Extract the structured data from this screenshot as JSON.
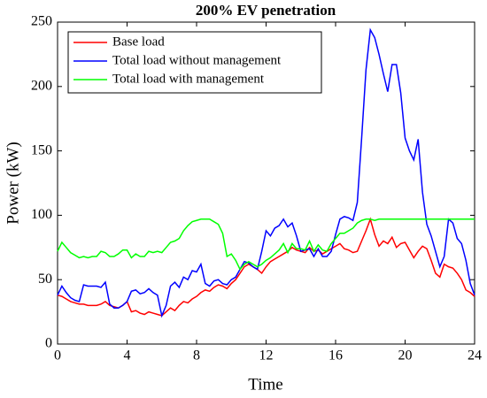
{
  "chart_data": {
    "type": "line",
    "title": "200% EV penetration",
    "x_label": "Time",
    "y_label": "Power (kW)",
    "x": [
      0,
      0.25,
      0.5,
      0.75,
      1,
      1.25,
      1.5,
      1.75,
      2,
      2.25,
      2.5,
      2.75,
      3,
      3.25,
      3.5,
      3.75,
      4,
      4.25,
      4.5,
      4.75,
      5,
      5.25,
      5.5,
      5.75,
      6,
      6.25,
      6.5,
      6.75,
      7,
      7.25,
      7.5,
      7.75,
      8,
      8.25,
      8.5,
      8.75,
      9,
      9.25,
      9.5,
      9.75,
      10,
      10.25,
      10.5,
      10.75,
      11,
      11.25,
      11.5,
      11.75,
      12,
      12.25,
      12.5,
      12.75,
      13,
      13.25,
      13.5,
      13.75,
      14,
      14.25,
      14.5,
      14.75,
      15,
      15.25,
      15.5,
      15.75,
      16,
      16.25,
      16.5,
      16.75,
      17,
      17.25,
      17.5,
      17.75,
      18,
      18.25,
      18.5,
      18.75,
      19,
      19.25,
      19.5,
      19.75,
      20,
      20.25,
      20.5,
      20.75,
      21,
      21.25,
      21.5,
      21.75,
      22,
      22.25,
      22.5,
      22.75,
      23,
      23.25,
      23.5,
      23.75,
      24
    ],
    "series": [
      {
        "name": "Base load",
        "color": "#ff0000",
        "values": [
          38,
          37,
          35,
          33,
          32,
          31,
          31,
          30,
          30,
          30,
          31,
          33,
          30,
          29,
          28,
          30,
          33,
          25,
          26,
          24,
          23,
          25,
          24,
          23,
          22,
          25,
          28,
          26,
          30,
          33,
          32,
          35,
          37,
          40,
          42,
          41,
          44,
          46,
          45,
          43,
          47,
          50,
          55,
          60,
          62,
          60,
          58,
          55,
          60,
          64,
          66,
          68,
          70,
          72,
          75,
          73,
          72,
          71,
          75,
          72,
          73,
          70,
          72,
          74,
          76,
          78,
          74,
          73,
          71,
          72,
          80,
          88,
          97,
          85,
          76,
          80,
          78,
          83,
          75,
          78,
          79,
          73,
          67,
          72,
          76,
          74,
          65,
          55,
          52,
          62,
          60,
          59,
          55,
          50,
          42,
          40,
          37
        ]
      },
      {
        "name": "Total load without management",
        "color": "#0000ff",
        "values": [
          38,
          45,
          40,
          36,
          34,
          33,
          46,
          45,
          45,
          45,
          44,
          48,
          31,
          28,
          28,
          30,
          33,
          41,
          42,
          39,
          40,
          43,
          40,
          38,
          22,
          30,
          45,
          48,
          44,
          52,
          50,
          57,
          56,
          62,
          47,
          45,
          49,
          50,
          47,
          46,
          50,
          52,
          58,
          64,
          63,
          60,
          58,
          72,
          88,
          84,
          90,
          92,
          97,
          91,
          94,
          84,
          72,
          73,
          74,
          68,
          74,
          68,
          68,
          72,
          85,
          97,
          99,
          98,
          96,
          110,
          160,
          213,
          244,
          238,
          225,
          210,
          196,
          217,
          217,
          195,
          160,
          150,
          143,
          159,
          118,
          93,
          84,
          72,
          60,
          68,
          97,
          94,
          82,
          78,
          65,
          47,
          38
        ]
      },
      {
        "name": "Total load with management",
        "color": "#00ff00",
        "values": [
          72,
          79,
          75,
          71,
          69,
          67,
          68,
          67,
          68,
          68,
          72,
          71,
          68,
          68,
          70,
          73,
          73,
          67,
          70,
          68,
          68,
          72,
          71,
          72,
          71,
          75,
          79,
          80,
          82,
          88,
          92,
          95,
          96,
          97,
          97,
          97,
          95,
          93,
          86,
          68,
          70,
          65,
          58,
          62,
          64,
          62,
          60,
          62,
          65,
          67,
          70,
          73,
          78,
          71,
          78,
          74,
          74,
          73,
          80,
          72,
          77,
          73,
          72,
          78,
          82,
          86,
          86,
          88,
          90,
          94,
          96,
          97,
          97,
          96,
          97,
          97,
          97,
          97,
          97,
          97,
          97,
          97,
          97,
          97,
          97,
          97,
          97,
          97,
          97,
          97,
          97,
          97,
          97,
          97,
          97,
          97,
          97
        ]
      }
    ],
    "xlim": [
      0,
      24
    ],
    "xticks": [
      0,
      4,
      8,
      12,
      16,
      20,
      24
    ],
    "ylim": [
      0,
      250
    ],
    "yticks": [
      0,
      50,
      100,
      150,
      200,
      250
    ],
    "legend": "upper left"
  }
}
